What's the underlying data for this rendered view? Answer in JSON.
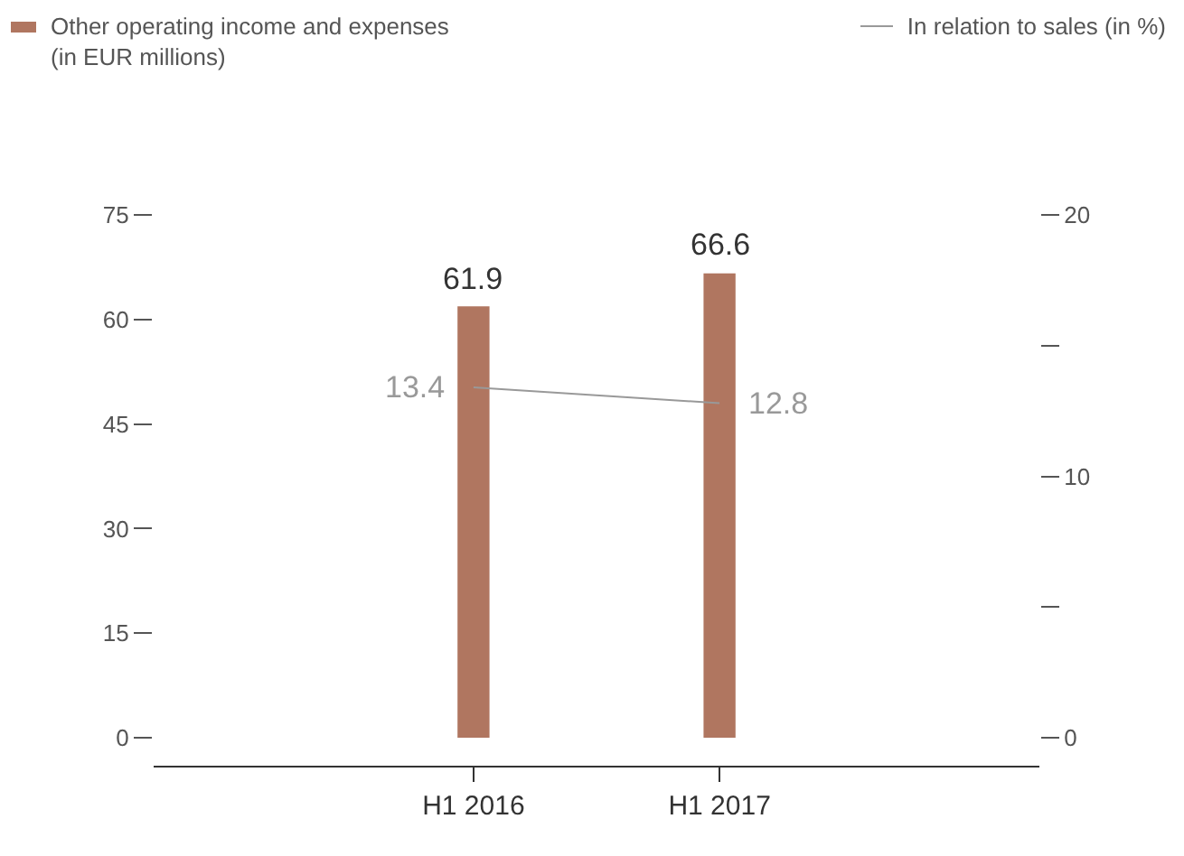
{
  "chart_data": {
    "type": "bar",
    "categories": [
      "H1 2016",
      "H1 2017"
    ],
    "series": [
      {
        "name": "Other operating income and expenses\n(in EUR millions)",
        "color": "#b07660",
        "values": [
          61.9,
          66.6
        ]
      },
      {
        "name": "In relation to sales (in %)",
        "type": "line",
        "axis": "y2",
        "color": "#999999",
        "values": [
          13.4,
          12.8
        ]
      }
    ],
    "data_labels": true,
    "ylim": [
      -4,
      75
    ],
    "yticks": [
      0,
      15,
      30,
      45,
      60,
      75
    ],
    "y2lim": [
      -1.07,
      20
    ],
    "y2ticks": [
      0,
      {
        "value": 5,
        "label": null
      },
      10,
      {
        "value": 15,
        "label": null
      },
      20
    ],
    "grid": false,
    "legend": "top",
    "marker": "none"
  }
}
